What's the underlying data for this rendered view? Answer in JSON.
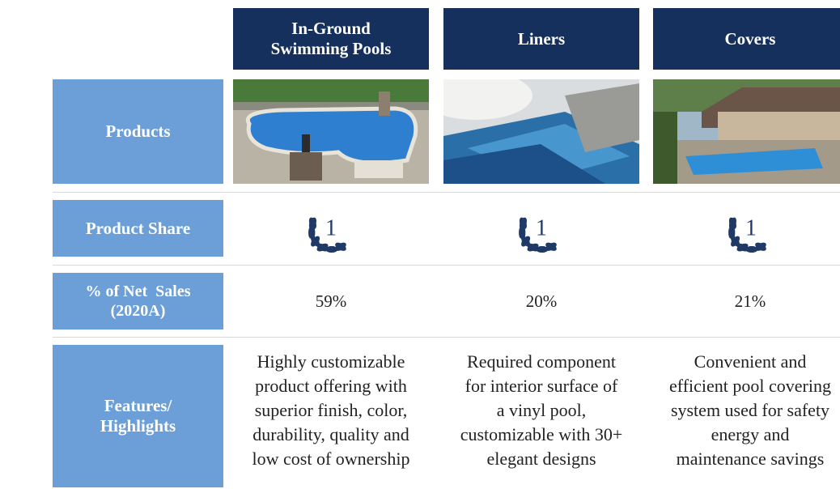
{
  "columns": [
    {
      "header": [
        "In-Ground",
        "Swimming Pools"
      ],
      "rank": "1",
      "net_sales": "59%",
      "features": [
        "Highly customizable",
        "product offering with",
        "superior finish, color,",
        "durability, quality and",
        "low cost of ownership"
      ]
    },
    {
      "header": [
        "Liners"
      ],
      "rank": "1",
      "net_sales": "20%",
      "features": [
        "Required component",
        "for interior surface of",
        "a vinyl pool,",
        "customizable with 30+",
        "elegant designs"
      ]
    },
    {
      "header": [
        "Covers"
      ],
      "rank": "1",
      "net_sales": "21%",
      "features": [
        "Convenient and",
        "efficient pool covering",
        "system used for safety",
        "energy and",
        "maintenance savings"
      ]
    }
  ],
  "rows": {
    "products": "Products",
    "product_share": "Product Share",
    "net_sales": [
      "% of Net  Sales",
      "(2020A)"
    ],
    "features": [
      "Features/",
      "Highlights"
    ]
  }
}
